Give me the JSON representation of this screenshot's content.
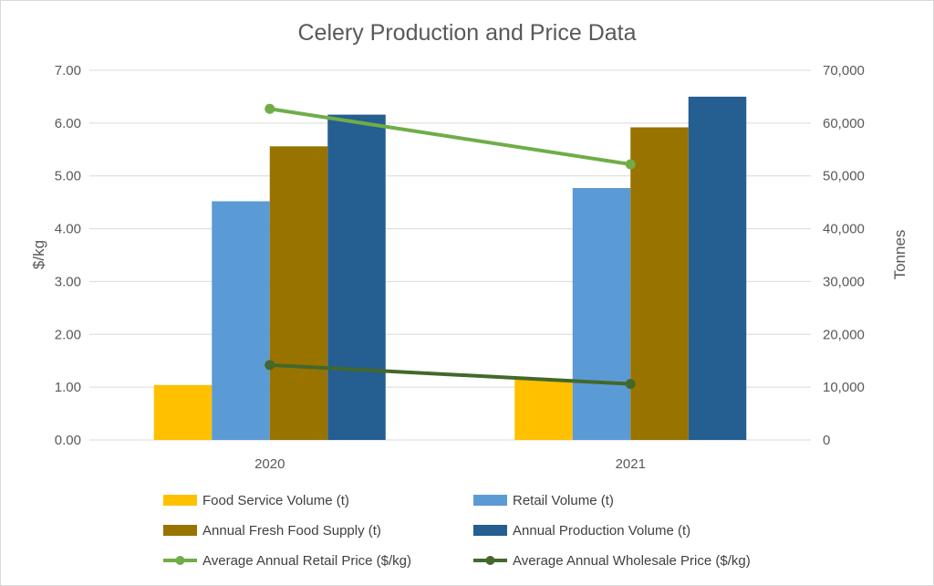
{
  "chart_data": {
    "type": "bar",
    "title": "Celery Production and Price Data",
    "categories": [
      "2020",
      "2021"
    ],
    "y_left": {
      "label": "$/kg",
      "range": [
        0,
        7
      ],
      "ticks": [
        "0.00",
        "1.00",
        "2.00",
        "3.00",
        "4.00",
        "5.00",
        "6.00",
        "7.00"
      ]
    },
    "y_right": {
      "label": "Tonnes",
      "range": [
        0,
        70000
      ],
      "ticks": [
        "0",
        "10,000",
        "20,000",
        "30,000",
        "40,000",
        "50,000",
        "60,000",
        "70,000"
      ]
    },
    "grid": true,
    "legend_position": "bottom",
    "bar_series": [
      {
        "name": "Food Service Volume (t)",
        "axis": "right",
        "color": "#FFC000",
        "values": [
          10400,
          11500
        ]
      },
      {
        "name": "Retail Volume (t)",
        "axis": "right",
        "color": "#5B9BD5",
        "values": [
          45200,
          47700
        ]
      },
      {
        "name": "Annual Fresh Food Supply (t)",
        "axis": "right",
        "color": "#997300",
        "values": [
          55600,
          59200
        ]
      },
      {
        "name": "Annual Production Volume (t)",
        "axis": "right",
        "color": "#255E91",
        "values": [
          61600,
          65000
        ]
      }
    ],
    "line_series": [
      {
        "name": "Average Annual Retail Price ($/kg)",
        "axis": "left",
        "color": "#70AD47",
        "values": [
          6.27,
          5.22
        ]
      },
      {
        "name": "Average Annual Wholesale Price ($/kg)",
        "axis": "left",
        "color": "#43682B",
        "values": [
          1.42,
          1.06
        ]
      }
    ]
  }
}
